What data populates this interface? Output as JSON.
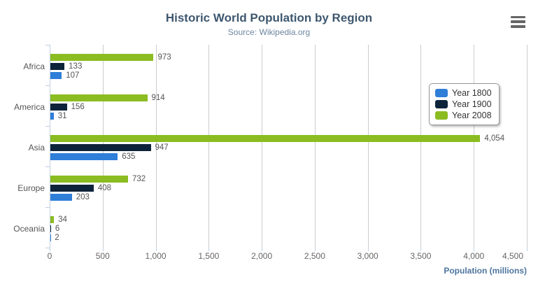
{
  "chart_data": {
    "type": "bar",
    "title": "Historic World Population by Region",
    "subtitle": "Source: Wikipedia.org",
    "categories": [
      "Africa",
      "America",
      "Asia",
      "Europe",
      "Oceania"
    ],
    "series": [
      {
        "name": "Year 1800",
        "color": "#2f7ed8",
        "values": [
          107,
          31,
          635,
          203,
          2
        ]
      },
      {
        "name": "Year 1900",
        "color": "#0d233a",
        "values": [
          133,
          156,
          947,
          408,
          6
        ]
      },
      {
        "name": "Year 2008",
        "color": "#8bbc21",
        "values": [
          973,
          914,
          4054,
          732,
          34
        ]
      }
    ],
    "series_draw_order_top_to_bottom": [
      "Year 2008",
      "Year 1900",
      "Year 1800"
    ],
    "xlabel": "Population (millions)",
    "ylabel": "",
    "xlim": [
      0,
      4500
    ],
    "x_tick_values": [
      0,
      500,
      1000,
      1500,
      2000,
      2500,
      3000,
      3500,
      4000,
      4500
    ],
    "x_tick_labels": [
      "0",
      "500",
      "1,000",
      "1,500",
      "2,000",
      "2,500",
      "3,000",
      "3,500",
      "4,000",
      "4,500"
    ],
    "grid": true,
    "data_labels": true,
    "legend_position": "floating-right"
  },
  "legend": {
    "items": [
      {
        "label": "Year 1800",
        "color": "#2f7ed8"
      },
      {
        "label": "Year 1900",
        "color": "#0d233a"
      },
      {
        "label": "Year 2008",
        "color": "#8bbc21"
      }
    ]
  },
  "export_menu": {
    "icon": "hamburger-icon"
  },
  "colors": {
    "background": "#ffffff",
    "title": "#3e576f",
    "subtitle": "#6d869f",
    "axis_title": "#4d759e",
    "tick_label": "#666666",
    "category_label": "#555555",
    "data_label": "#555555",
    "grid_line": "#cccccc",
    "axis_line": "#c0d0e0",
    "legend_border": "#999999",
    "export_icon": "#666666"
  }
}
